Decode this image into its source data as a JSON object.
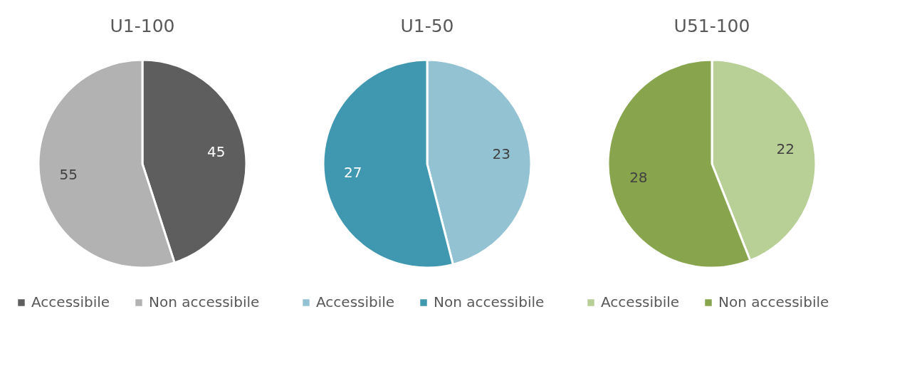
{
  "chart_data": [
    {
      "type": "pie",
      "title": "U1-100",
      "categories": [
        "Accessibile",
        "Non accessibile"
      ],
      "values": [
        45,
        55
      ],
      "colors": [
        "#5e5e5e",
        "#b2b2b2"
      ],
      "data_labels": true,
      "legend": "bottom"
    },
    {
      "type": "pie",
      "title": "U1-50",
      "categories": [
        "Accessibile",
        "Non accessibile"
      ],
      "values": [
        23,
        27
      ],
      "colors": [
        "#93c3d3",
        "#4098b0"
      ],
      "data_labels": true,
      "legend": "bottom"
    },
    {
      "type": "pie",
      "title": "U51-100",
      "categories": [
        "Accessibile",
        "Non accessibile"
      ],
      "values": [
        22,
        28
      ],
      "colors": [
        "#b8cf96",
        "#88a54e"
      ],
      "data_labels": true,
      "legend": "bottom"
    }
  ]
}
